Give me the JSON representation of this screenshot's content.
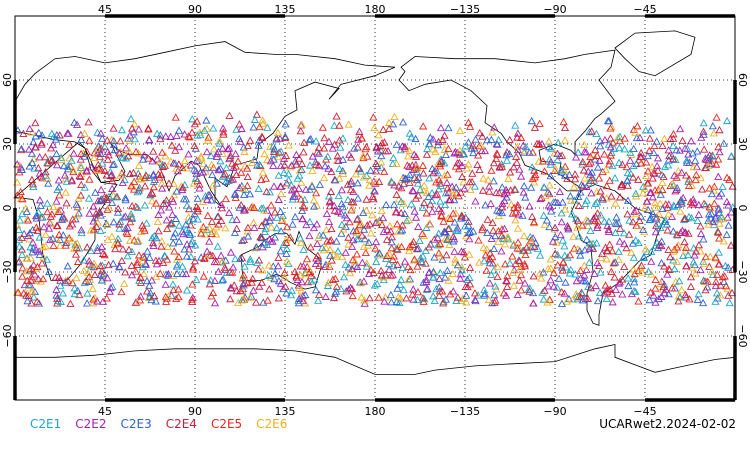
{
  "chart_data": {
    "type": "scatter",
    "projection": "equirectangular",
    "xlim": [
      0,
      360
    ],
    "ylim": [
      -90,
      90
    ],
    "lat_coverage": [
      -45,
      45
    ],
    "grid": true,
    "marker": "open-triangle",
    "x_ticks": [
      "45",
      "90",
      "135",
      "180",
      "−135",
      "−90",
      "−45"
    ],
    "y_ticks": [
      "60",
      "30",
      "0",
      "−30",
      "−60"
    ],
    "series": [
      {
        "name": "C2E1",
        "color": "#19a7c8"
      },
      {
        "name": "C2E2",
        "color": "#a51fb4"
      },
      {
        "name": "C2E3",
        "color": "#2b62d6"
      },
      {
        "name": "C2E4",
        "color": "#c81e3c"
      },
      {
        "name": "C2E5",
        "color": "#e8251a"
      },
      {
        "name": "C2E6",
        "color": "#f0b020"
      }
    ]
  },
  "footer": {
    "label": "UCARwet2.2024-02-02"
  }
}
